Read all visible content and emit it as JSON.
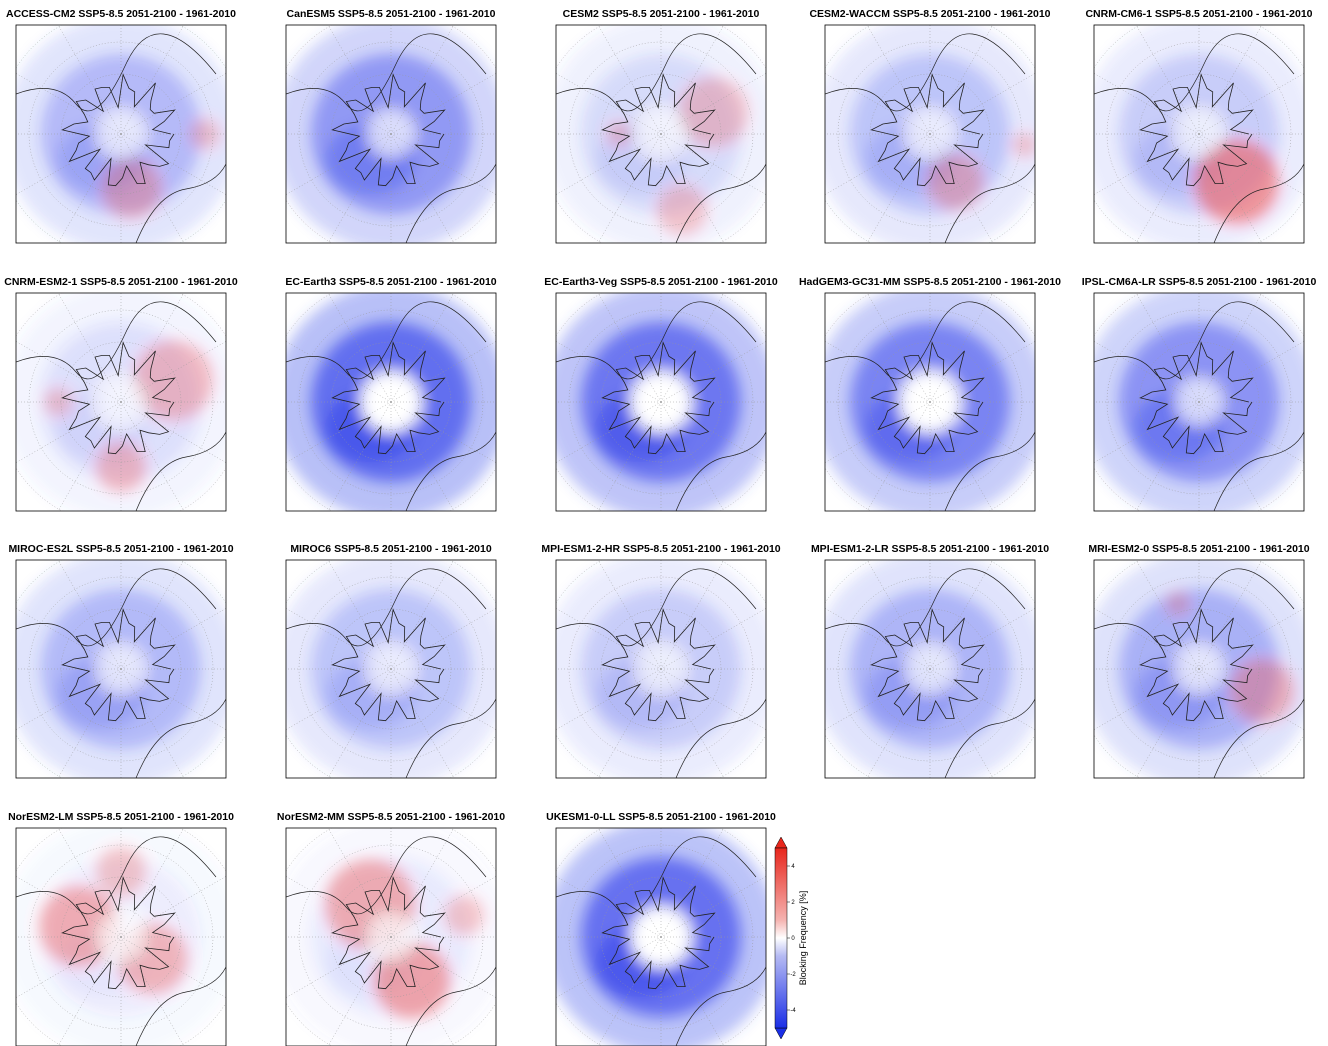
{
  "panels": [
    {
      "title": "ACCESS-CM2 SSP5-8.5 2051-2100 - 1961-2010"
    },
    {
      "title": "CanESM5 SSP5-8.5 2051-2100 - 1961-2010"
    },
    {
      "title": "CESM2 SSP5-8.5 2051-2100 - 1961-2010"
    },
    {
      "title": "CESM2-WACCM SSP5-8.5 2051-2100 - 1961-2010"
    },
    {
      "title": "CNRM-CM6-1 SSP5-8.5 2051-2100 - 1961-2010"
    },
    {
      "title": "CNRM-ESM2-1 SSP5-8.5 2051-2100 - 1961-2010"
    },
    {
      "title": "EC-Earth3 SSP5-8.5 2051-2100 - 1961-2010"
    },
    {
      "title": "EC-Earth3-Veg SSP5-8.5 2051-2100 - 1961-2010"
    },
    {
      "title": "HadGEM3-GC31-MM SSP5-8.5 2051-2100 - 1961-2010"
    },
    {
      "title": "IPSL-CM6A-LR SSP5-8.5 2051-2100 - 1961-2010"
    },
    {
      "title": "MIROC-ES2L SSP5-8.5 2051-2100 - 1961-2010"
    },
    {
      "title": "MIROC6 SSP5-8.5 2051-2100 - 1961-2010"
    },
    {
      "title": "MPI-ESM1-2-HR SSP5-8.5 2051-2100 - 1961-2010"
    },
    {
      "title": "MPI-ESM1-2-LR SSP5-8.5 2051-2100 - 1961-2010"
    },
    {
      "title": "MRI-ESM2-0 SSP5-8.5 2051-2100 - 1961-2010"
    },
    {
      "title": "NorESM2-LM SSP5-8.5 2051-2100 - 1961-2010"
    },
    {
      "title": "NorESM2-MM SSP5-8.5 2051-2100 - 1961-2010"
    },
    {
      "title": "UKESM1-0-LL SSP5-8.5 2051-2100 - 1961-2010"
    }
  ],
  "colorbar": {
    "label": "Blocking Frequency [%]",
    "lim": [
      -5,
      5
    ],
    "ticks": [
      -4,
      -2,
      0,
      2,
      4
    ]
  }
}
